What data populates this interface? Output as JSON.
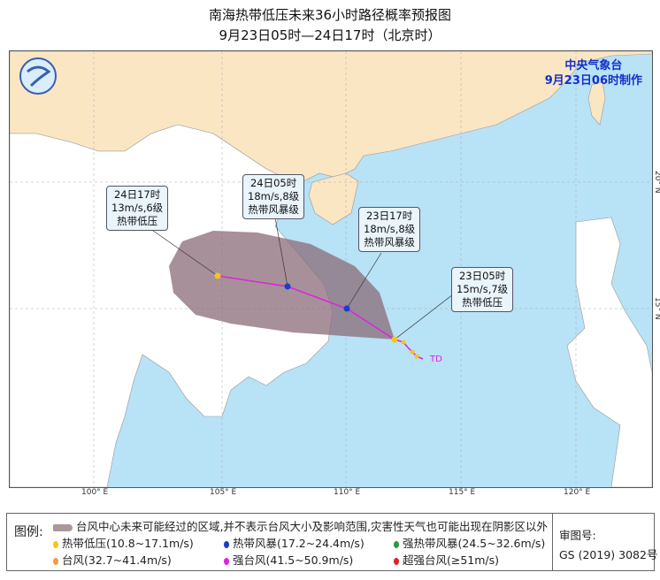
{
  "title": {
    "line1": "南海热带低压未来36小时路径概率预报图",
    "line2": "9月23日05时—24日17时（北京时）"
  },
  "agency": {
    "name": "中央气象台",
    "issued": "9月23日06时制作"
  },
  "axes": {
    "lon": [
      "100° E",
      "105° E",
      "110° E",
      "115° E",
      "120° E"
    ],
    "lat": [
      "15° N",
      "20° N"
    ]
  },
  "forecast_points": [
    {
      "time": "23日05时",
      "wind": "15m/s,7级",
      "category": "热带低压",
      "color": "#f5c518"
    },
    {
      "time": "23日17时",
      "wind": "18m/s,8级",
      "category": "热带风暴级",
      "color": "#1a3fc8"
    },
    {
      "time": "24日05时",
      "wind": "18m/s,8级",
      "category": "热带风暴级",
      "color": "#1a3fc8"
    },
    {
      "time": "24日17时",
      "wind": "13m/s,6级",
      "category": "热带低压",
      "color": "#f5c518"
    }
  ],
  "current_label": "TD",
  "colors": {
    "sea": "#b8e2f6",
    "china_land": "#fbe6c4",
    "other_land": "#ffffff",
    "cone": "#8a6b78",
    "track": "#e020e0"
  },
  "legend": {
    "title": "图例:",
    "cone_text": "台风中心未来可能经过的区域,并不表示台风大小及影响范围,灾害性天气也可能出现在阴影区以外",
    "items": [
      {
        "label": "热带低压(10.8~17.1m/s)",
        "color": "#f5c518"
      },
      {
        "label": "热带风暴(17.2~24.4m/s)",
        "color": "#1a3fc8"
      },
      {
        "label": "强热带风暴(24.5~32.6m/s)",
        "color": "#2a9a3a"
      },
      {
        "label": "台风(32.7~41.4m/s)",
        "color": "#f59a40"
      },
      {
        "label": "强台风(41.5~50.9m/s)",
        "color": "#e020e0"
      },
      {
        "label": "超强台风(≥51m/s)",
        "color": "#e02020"
      }
    ],
    "approval_label": "审图号:",
    "approval_no": "GS (2019) 3082号"
  }
}
